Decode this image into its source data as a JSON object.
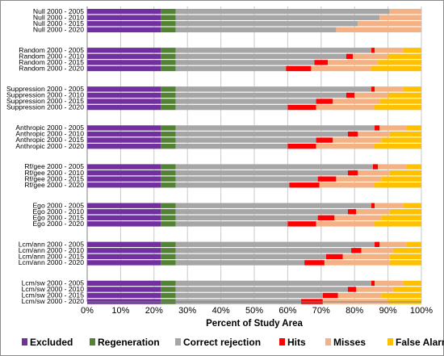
{
  "chart_data": {
    "type": "bar",
    "orientation": "horizontal",
    "stacked": true,
    "normalized_percent": true,
    "xlabel": "Percent of Study Area",
    "xlim": [
      0,
      100
    ],
    "x_ticks": [
      "0%",
      "10%",
      "20%",
      "30%",
      "40%",
      "50%",
      "60%",
      "70%",
      "80%",
      "90%",
      "100%"
    ],
    "grid": "vertical",
    "legend_position": "bottom",
    "series": [
      {
        "name": "Excluded",
        "color": "#7030a0"
      },
      {
        "name": "Regeneration",
        "color": "#548235"
      },
      {
        "name": "Correct rejection",
        "color": "#a6a6a6"
      },
      {
        "name": "Hits",
        "color": "#ff0000"
      },
      {
        "name": "Misses",
        "color": "#f4b183"
      },
      {
        "name": "False Alarms",
        "color": "#ffc000"
      }
    ],
    "groups": [
      {
        "bars": [
          {
            "label": "Null 2000 - 2005",
            "values": [
              22,
              4.5,
              64,
              0,
              9.5,
              0
            ]
          },
          {
            "label": "Null 2000 - 2010",
            "values": [
              22,
              4.5,
              61,
              0,
              12.5,
              0
            ]
          },
          {
            "label": "Null 2000 - 2015",
            "values": [
              22,
              4.5,
              54.5,
              0,
              19,
              0
            ]
          },
          {
            "label": "Null 2000 - 2020",
            "values": [
              22,
              4.5,
              48,
              0,
              25.5,
              0
            ]
          }
        ]
      },
      {
        "bars": [
          {
            "label": "Random 2000 - 2005",
            "values": [
              22,
              4.5,
              58.5,
              1,
              8.5,
              5.5
            ]
          },
          {
            "label": "Random 2000 - 2010",
            "values": [
              22,
              4.5,
              51,
              2,
              10.5,
              10
            ]
          },
          {
            "label": "Random 2000 - 2015",
            "values": [
              22,
              4.5,
              41.5,
              4,
              15,
              13
            ]
          },
          {
            "label": "Random 2000 - 2020",
            "values": [
              22,
              4.5,
              33,
              7.5,
              18,
              15
            ]
          }
        ]
      },
      {
        "bars": [
          {
            "label": "Suppression 2000 - 2005",
            "values": [
              22,
              4.5,
              58.5,
              1,
              8.5,
              5.5
            ]
          },
          {
            "label": "Suppression 2000 - 2010",
            "values": [
              22,
              4.5,
              51,
              2.5,
              10,
              10
            ]
          },
          {
            "label": "Suppression 2000 - 2015",
            "values": [
              22,
              4.5,
              42,
              5,
              14,
              12.5
            ]
          },
          {
            "label": "Suppression 2000 - 2020",
            "values": [
              22,
              4.5,
              33.5,
              8.5,
              17.5,
              14
            ]
          }
        ]
      },
      {
        "bars": [
          {
            "label": "Anthropic 2000 - 2005",
            "values": [
              22,
              4.5,
              59.5,
              1.5,
              8,
              4.5
            ]
          },
          {
            "label": "Anthropic 2000 - 2010",
            "values": [
              22,
              4.5,
              51.5,
              3,
              9.5,
              9.5
            ]
          },
          {
            "label": "Anthropic 2000 - 2015",
            "values": [
              22,
              4.5,
              42,
              5,
              14.5,
              12
            ]
          },
          {
            "label": "Anthropic 2000 - 2020",
            "values": [
              22,
              4.5,
              33.5,
              8.5,
              17.5,
              14
            ]
          }
        ]
      },
      {
        "bars": [
          {
            "label": "Rf/gee 2000 - 2005",
            "values": [
              22,
              4.5,
              59,
              1.5,
              8.5,
              4.5
            ]
          },
          {
            "label": "Rf/gee 2000 - 2010",
            "values": [
              22,
              4.5,
              51.5,
              3,
              9.5,
              9.5
            ]
          },
          {
            "label": "Rf/gee 2000 - 2015",
            "values": [
              22,
              4.5,
              42.5,
              5.5,
              13.5,
              12
            ]
          },
          {
            "label": "Rf/gee 2000 - 2020",
            "values": [
              22,
              4.5,
              34,
              9,
              16.5,
              14
            ]
          }
        ]
      },
      {
        "bars": [
          {
            "label": "Ego 2000 - 2005",
            "values": [
              22,
              4.5,
              58.5,
              1,
              8.5,
              5.5
            ]
          },
          {
            "label": "Ego 2000 - 2010",
            "values": [
              22,
              4.5,
              51.5,
              2.5,
              10,
              9.5
            ]
          },
          {
            "label": "Ego 2000 - 2015",
            "values": [
              22,
              4.5,
              42.5,
              5,
              14,
              12
            ]
          },
          {
            "label": "Ego 2000 - 2020",
            "values": [
              22,
              4.5,
              33.5,
              8.5,
              17.5,
              14
            ]
          }
        ]
      },
      {
        "bars": [
          {
            "label": "Lcm/ann 2000 - 2005",
            "values": [
              22,
              4.5,
              59.5,
              1.5,
              8,
              4.5
            ]
          },
          {
            "label": "Lcm/ann 2000 - 2010",
            "values": [
              22,
              4.5,
              52.5,
              3,
              9.5,
              8.5
            ]
          },
          {
            "label": "Lcm/ann 2000 - 2015",
            "values": [
              22,
              4.5,
              45,
              5,
              14,
              9.5
            ]
          },
          {
            "label": "Lcm/ann 2000 - 2020",
            "values": [
              22,
              4.5,
              38.5,
              6,
              19.5,
              9.5
            ]
          }
        ]
      },
      {
        "bars": [
          {
            "label": "Lcm/sw 2000 - 2005",
            "values": [
              22,
              4.5,
              58.5,
              1,
              8.5,
              5.5
            ]
          },
          {
            "label": "Lcm/sw 2000 - 2010",
            "values": [
              22,
              4.5,
              51.5,
              2.5,
              11,
              8.5
            ]
          },
          {
            "label": "Lcm/sw 2000 - 2015",
            "values": [
              22,
              4.5,
              44,
              4.5,
              13,
              12
            ]
          },
          {
            "label": "Lcm/sw 2000 - 2020",
            "values": [
              22,
              4.5,
              37.5,
              6.5,
              19.5,
              10
            ]
          }
        ]
      }
    ]
  }
}
